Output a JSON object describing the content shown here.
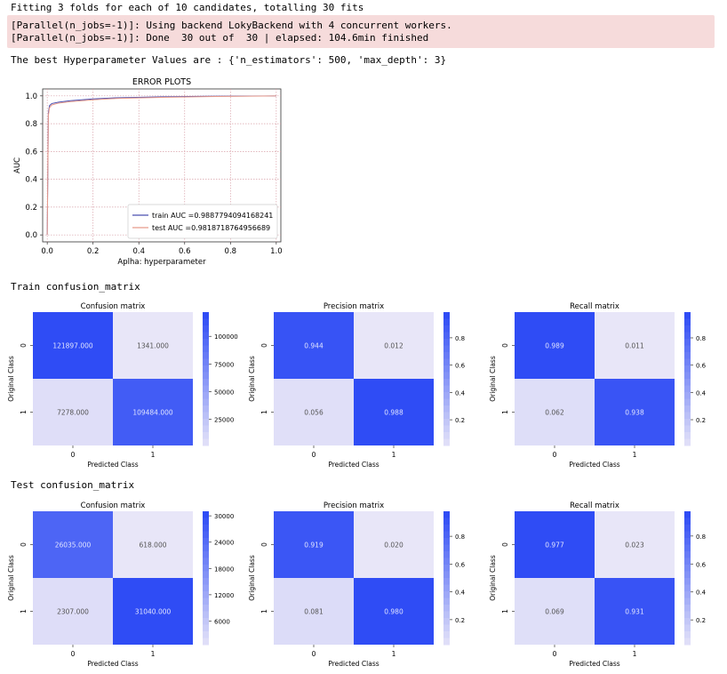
{
  "output": {
    "fitting_line": "Fitting 3 folds for each of 10 candidates, totalling 30 fits",
    "stderr_lines": [
      "[Parallel(n_jobs=-1)]: Using backend LokyBackend with 4 concurrent workers.",
      "[Parallel(n_jobs=-1)]: Done  30 out of  30 | elapsed: 104.6min finished"
    ],
    "best_params_line": "The best Hyperparameter Values are : {'n_estimators': 500, 'max_depth': 3}",
    "train_heading": "Train confusion_matrix",
    "test_heading": "Test confusion_matrix"
  },
  "chart_data": [
    {
      "type": "line",
      "title": "ERROR PLOTS",
      "xlabel": "Aplha: hyperparameter",
      "ylabel": "AUC",
      "xlim": [
        -0.02,
        1.02
      ],
      "ylim": [
        -0.05,
        1.05
      ],
      "xticks": [
        "0.0",
        "0.2",
        "0.4",
        "0.6",
        "0.8",
        "1.0"
      ],
      "yticks": [
        "0.0",
        "0.2",
        "0.4",
        "0.6",
        "0.8",
        "1.0"
      ],
      "grid": true,
      "legend_position": "lower-right",
      "series": [
        {
          "name": "train AUC =0.9887794094168241",
          "color": "#4a4fb0",
          "x": [
            0,
            0.005,
            0.01,
            0.02,
            0.05,
            0.1,
            0.2,
            0.3,
            0.5,
            0.7,
            1.0
          ],
          "y": [
            0,
            0.88,
            0.93,
            0.945,
            0.955,
            0.965,
            0.978,
            0.986,
            0.993,
            0.997,
            1.0
          ]
        },
        {
          "name": "test AUC =0.9818718764956689",
          "color": "#e89a8a",
          "x": [
            0,
            0.005,
            0.01,
            0.02,
            0.05,
            0.1,
            0.2,
            0.3,
            0.5,
            0.7,
            1.0
          ],
          "y": [
            0,
            0.86,
            0.915,
            0.935,
            0.948,
            0.958,
            0.972,
            0.981,
            0.989,
            0.995,
            1.0
          ]
        }
      ]
    },
    {
      "type": "heatmap",
      "group": "train",
      "title": "Confusion matrix",
      "xlabel": "Predicted Class",
      "ylabel": "Original Class",
      "x_tick_labels": [
        "0",
        "1"
      ],
      "y_tick_labels": [
        "0",
        "1"
      ],
      "cell_labels": [
        "121897.000",
        "1341.000",
        "7278.000",
        "109484.000"
      ],
      "values": [
        121897,
        1341,
        7278,
        109484
      ],
      "colorbar_ticks": [
        "100000",
        "75000",
        "50000",
        "25000"
      ],
      "colorbar_values": [
        100000,
        75000,
        50000,
        25000
      ],
      "colorbar_range": [
        1341,
        121897
      ]
    },
    {
      "type": "heatmap",
      "group": "train",
      "title": "Precision matrix",
      "xlabel": "Predicted Class",
      "ylabel": "Original Class",
      "x_tick_labels": [
        "0",
        "1"
      ],
      "y_tick_labels": [
        "0",
        "1"
      ],
      "cell_labels": [
        "0.944",
        "0.012",
        "0.056",
        "0.988"
      ],
      "values": [
        0.944,
        0.012,
        0.056,
        0.988
      ],
      "colorbar_ticks": [
        "0.8",
        "0.6",
        "0.4",
        "0.2"
      ],
      "colorbar_values": [
        0.8,
        0.6,
        0.4,
        0.2
      ],
      "colorbar_range": [
        0.012,
        0.988
      ]
    },
    {
      "type": "heatmap",
      "group": "train",
      "title": "Recall matrix",
      "xlabel": "Predicted Class",
      "ylabel": "Original Class",
      "x_tick_labels": [
        "0",
        "1"
      ],
      "y_tick_labels": [
        "0",
        "1"
      ],
      "cell_labels": [
        "0.989",
        "0.011",
        "0.062",
        "0.938"
      ],
      "values": [
        0.989,
        0.011,
        0.062,
        0.938
      ],
      "colorbar_ticks": [
        "0.8",
        "0.6",
        "0.4",
        "0.2"
      ],
      "colorbar_values": [
        0.8,
        0.6,
        0.4,
        0.2
      ],
      "colorbar_range": [
        0.011,
        0.989
      ]
    },
    {
      "type": "heatmap",
      "group": "test",
      "title": "Confusion matrix",
      "xlabel": "Predicted Class",
      "ylabel": "Original Class",
      "x_tick_labels": [
        "0",
        "1"
      ],
      "y_tick_labels": [
        "0",
        "1"
      ],
      "cell_labels": [
        "26035.000",
        "618.000",
        "2307.000",
        "31040.000"
      ],
      "values": [
        26035,
        618,
        2307,
        31040
      ],
      "colorbar_ticks": [
        "30000",
        "24000",
        "18000",
        "12000",
        "6000"
      ],
      "colorbar_values": [
        30000,
        24000,
        18000,
        12000,
        6000
      ],
      "colorbar_range": [
        618,
        31040
      ]
    },
    {
      "type": "heatmap",
      "group": "test",
      "title": "Precision matrix",
      "xlabel": "Predicted Class",
      "ylabel": "Original Class",
      "x_tick_labels": [
        "0",
        "1"
      ],
      "y_tick_labels": [
        "0",
        "1"
      ],
      "cell_labels": [
        "0.919",
        "0.020",
        "0.081",
        "0.980"
      ],
      "values": [
        0.919,
        0.02,
        0.081,
        0.98
      ],
      "colorbar_ticks": [
        "0.8",
        "0.6",
        "0.4",
        "0.2"
      ],
      "colorbar_values": [
        0.8,
        0.6,
        0.4,
        0.2
      ],
      "colorbar_range": [
        0.02,
        0.98
      ]
    },
    {
      "type": "heatmap",
      "group": "test",
      "title": "Recall matrix",
      "xlabel": "Predicted Class",
      "ylabel": "Original Class",
      "x_tick_labels": [
        "0",
        "1"
      ],
      "y_tick_labels": [
        "0",
        "1"
      ],
      "cell_labels": [
        "0.977",
        "0.023",
        "0.069",
        "0.931"
      ],
      "values": [
        0.977,
        0.023,
        0.069,
        0.931
      ],
      "colorbar_ticks": [
        "0.8",
        "0.6",
        "0.4",
        "0.2"
      ],
      "colorbar_values": [
        0.8,
        0.6,
        0.4,
        0.2
      ],
      "colorbar_range": [
        0.023,
        0.977
      ]
    }
  ],
  "colors": {
    "heat_low": "#e8e6f8",
    "heat_high": "#2f4cf5",
    "stderr_bg": "#f6dbdb",
    "grid_color": "#d8a0a8"
  }
}
